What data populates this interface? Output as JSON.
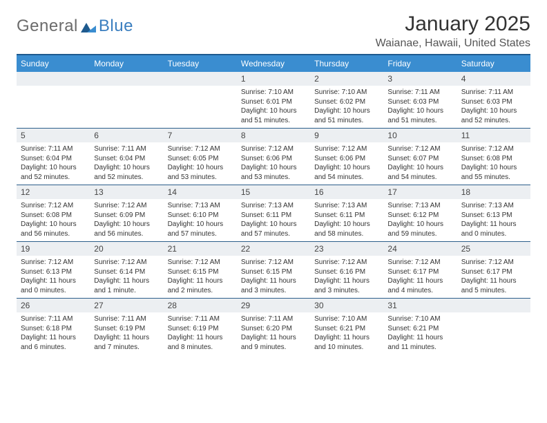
{
  "logo": {
    "general": "General",
    "blue": "Blue"
  },
  "title": "January 2025",
  "location": "Waianae, Hawaii, United States",
  "colors": {
    "header_bg": "#3a8dd0",
    "top_border": "#1e5a8e",
    "week_border": "#2b5e8a",
    "daynum_bg": "#eceff2",
    "logo_gray": "#6b6b6b",
    "logo_blue": "#3a7ebf"
  },
  "day_names": [
    "Sunday",
    "Monday",
    "Tuesday",
    "Wednesday",
    "Thursday",
    "Friday",
    "Saturday"
  ],
  "weeks": [
    [
      {
        "n": "",
        "sr": "",
        "ss": "",
        "d1": "",
        "d2": ""
      },
      {
        "n": "",
        "sr": "",
        "ss": "",
        "d1": "",
        "d2": ""
      },
      {
        "n": "",
        "sr": "",
        "ss": "",
        "d1": "",
        "d2": ""
      },
      {
        "n": "1",
        "sr": "Sunrise: 7:10 AM",
        "ss": "Sunset: 6:01 PM",
        "d1": "Daylight: 10 hours",
        "d2": "and 51 minutes."
      },
      {
        "n": "2",
        "sr": "Sunrise: 7:10 AM",
        "ss": "Sunset: 6:02 PM",
        "d1": "Daylight: 10 hours",
        "d2": "and 51 minutes."
      },
      {
        "n": "3",
        "sr": "Sunrise: 7:11 AM",
        "ss": "Sunset: 6:03 PM",
        "d1": "Daylight: 10 hours",
        "d2": "and 51 minutes."
      },
      {
        "n": "4",
        "sr": "Sunrise: 7:11 AM",
        "ss": "Sunset: 6:03 PM",
        "d1": "Daylight: 10 hours",
        "d2": "and 52 minutes."
      }
    ],
    [
      {
        "n": "5",
        "sr": "Sunrise: 7:11 AM",
        "ss": "Sunset: 6:04 PM",
        "d1": "Daylight: 10 hours",
        "d2": "and 52 minutes."
      },
      {
        "n": "6",
        "sr": "Sunrise: 7:11 AM",
        "ss": "Sunset: 6:04 PM",
        "d1": "Daylight: 10 hours",
        "d2": "and 52 minutes."
      },
      {
        "n": "7",
        "sr": "Sunrise: 7:12 AM",
        "ss": "Sunset: 6:05 PM",
        "d1": "Daylight: 10 hours",
        "d2": "and 53 minutes."
      },
      {
        "n": "8",
        "sr": "Sunrise: 7:12 AM",
        "ss": "Sunset: 6:06 PM",
        "d1": "Daylight: 10 hours",
        "d2": "and 53 minutes."
      },
      {
        "n": "9",
        "sr": "Sunrise: 7:12 AM",
        "ss": "Sunset: 6:06 PM",
        "d1": "Daylight: 10 hours",
        "d2": "and 54 minutes."
      },
      {
        "n": "10",
        "sr": "Sunrise: 7:12 AM",
        "ss": "Sunset: 6:07 PM",
        "d1": "Daylight: 10 hours",
        "d2": "and 54 minutes."
      },
      {
        "n": "11",
        "sr": "Sunrise: 7:12 AM",
        "ss": "Sunset: 6:08 PM",
        "d1": "Daylight: 10 hours",
        "d2": "and 55 minutes."
      }
    ],
    [
      {
        "n": "12",
        "sr": "Sunrise: 7:12 AM",
        "ss": "Sunset: 6:08 PM",
        "d1": "Daylight: 10 hours",
        "d2": "and 56 minutes."
      },
      {
        "n": "13",
        "sr": "Sunrise: 7:12 AM",
        "ss": "Sunset: 6:09 PM",
        "d1": "Daylight: 10 hours",
        "d2": "and 56 minutes."
      },
      {
        "n": "14",
        "sr": "Sunrise: 7:13 AM",
        "ss": "Sunset: 6:10 PM",
        "d1": "Daylight: 10 hours",
        "d2": "and 57 minutes."
      },
      {
        "n": "15",
        "sr": "Sunrise: 7:13 AM",
        "ss": "Sunset: 6:11 PM",
        "d1": "Daylight: 10 hours",
        "d2": "and 57 minutes."
      },
      {
        "n": "16",
        "sr": "Sunrise: 7:13 AM",
        "ss": "Sunset: 6:11 PM",
        "d1": "Daylight: 10 hours",
        "d2": "and 58 minutes."
      },
      {
        "n": "17",
        "sr": "Sunrise: 7:13 AM",
        "ss": "Sunset: 6:12 PM",
        "d1": "Daylight: 10 hours",
        "d2": "and 59 minutes."
      },
      {
        "n": "18",
        "sr": "Sunrise: 7:13 AM",
        "ss": "Sunset: 6:13 PM",
        "d1": "Daylight: 11 hours",
        "d2": "and 0 minutes."
      }
    ],
    [
      {
        "n": "19",
        "sr": "Sunrise: 7:12 AM",
        "ss": "Sunset: 6:13 PM",
        "d1": "Daylight: 11 hours",
        "d2": "and 0 minutes."
      },
      {
        "n": "20",
        "sr": "Sunrise: 7:12 AM",
        "ss": "Sunset: 6:14 PM",
        "d1": "Daylight: 11 hours",
        "d2": "and 1 minute."
      },
      {
        "n": "21",
        "sr": "Sunrise: 7:12 AM",
        "ss": "Sunset: 6:15 PM",
        "d1": "Daylight: 11 hours",
        "d2": "and 2 minutes."
      },
      {
        "n": "22",
        "sr": "Sunrise: 7:12 AM",
        "ss": "Sunset: 6:15 PM",
        "d1": "Daylight: 11 hours",
        "d2": "and 3 minutes."
      },
      {
        "n": "23",
        "sr": "Sunrise: 7:12 AM",
        "ss": "Sunset: 6:16 PM",
        "d1": "Daylight: 11 hours",
        "d2": "and 3 minutes."
      },
      {
        "n": "24",
        "sr": "Sunrise: 7:12 AM",
        "ss": "Sunset: 6:17 PM",
        "d1": "Daylight: 11 hours",
        "d2": "and 4 minutes."
      },
      {
        "n": "25",
        "sr": "Sunrise: 7:12 AM",
        "ss": "Sunset: 6:17 PM",
        "d1": "Daylight: 11 hours",
        "d2": "and 5 minutes."
      }
    ],
    [
      {
        "n": "26",
        "sr": "Sunrise: 7:11 AM",
        "ss": "Sunset: 6:18 PM",
        "d1": "Daylight: 11 hours",
        "d2": "and 6 minutes."
      },
      {
        "n": "27",
        "sr": "Sunrise: 7:11 AM",
        "ss": "Sunset: 6:19 PM",
        "d1": "Daylight: 11 hours",
        "d2": "and 7 minutes."
      },
      {
        "n": "28",
        "sr": "Sunrise: 7:11 AM",
        "ss": "Sunset: 6:19 PM",
        "d1": "Daylight: 11 hours",
        "d2": "and 8 minutes."
      },
      {
        "n": "29",
        "sr": "Sunrise: 7:11 AM",
        "ss": "Sunset: 6:20 PM",
        "d1": "Daylight: 11 hours",
        "d2": "and 9 minutes."
      },
      {
        "n": "30",
        "sr": "Sunrise: 7:10 AM",
        "ss": "Sunset: 6:21 PM",
        "d1": "Daylight: 11 hours",
        "d2": "and 10 minutes."
      },
      {
        "n": "31",
        "sr": "Sunrise: 7:10 AM",
        "ss": "Sunset: 6:21 PM",
        "d1": "Daylight: 11 hours",
        "d2": "and 11 minutes."
      },
      {
        "n": "",
        "sr": "",
        "ss": "",
        "d1": "",
        "d2": ""
      }
    ]
  ]
}
